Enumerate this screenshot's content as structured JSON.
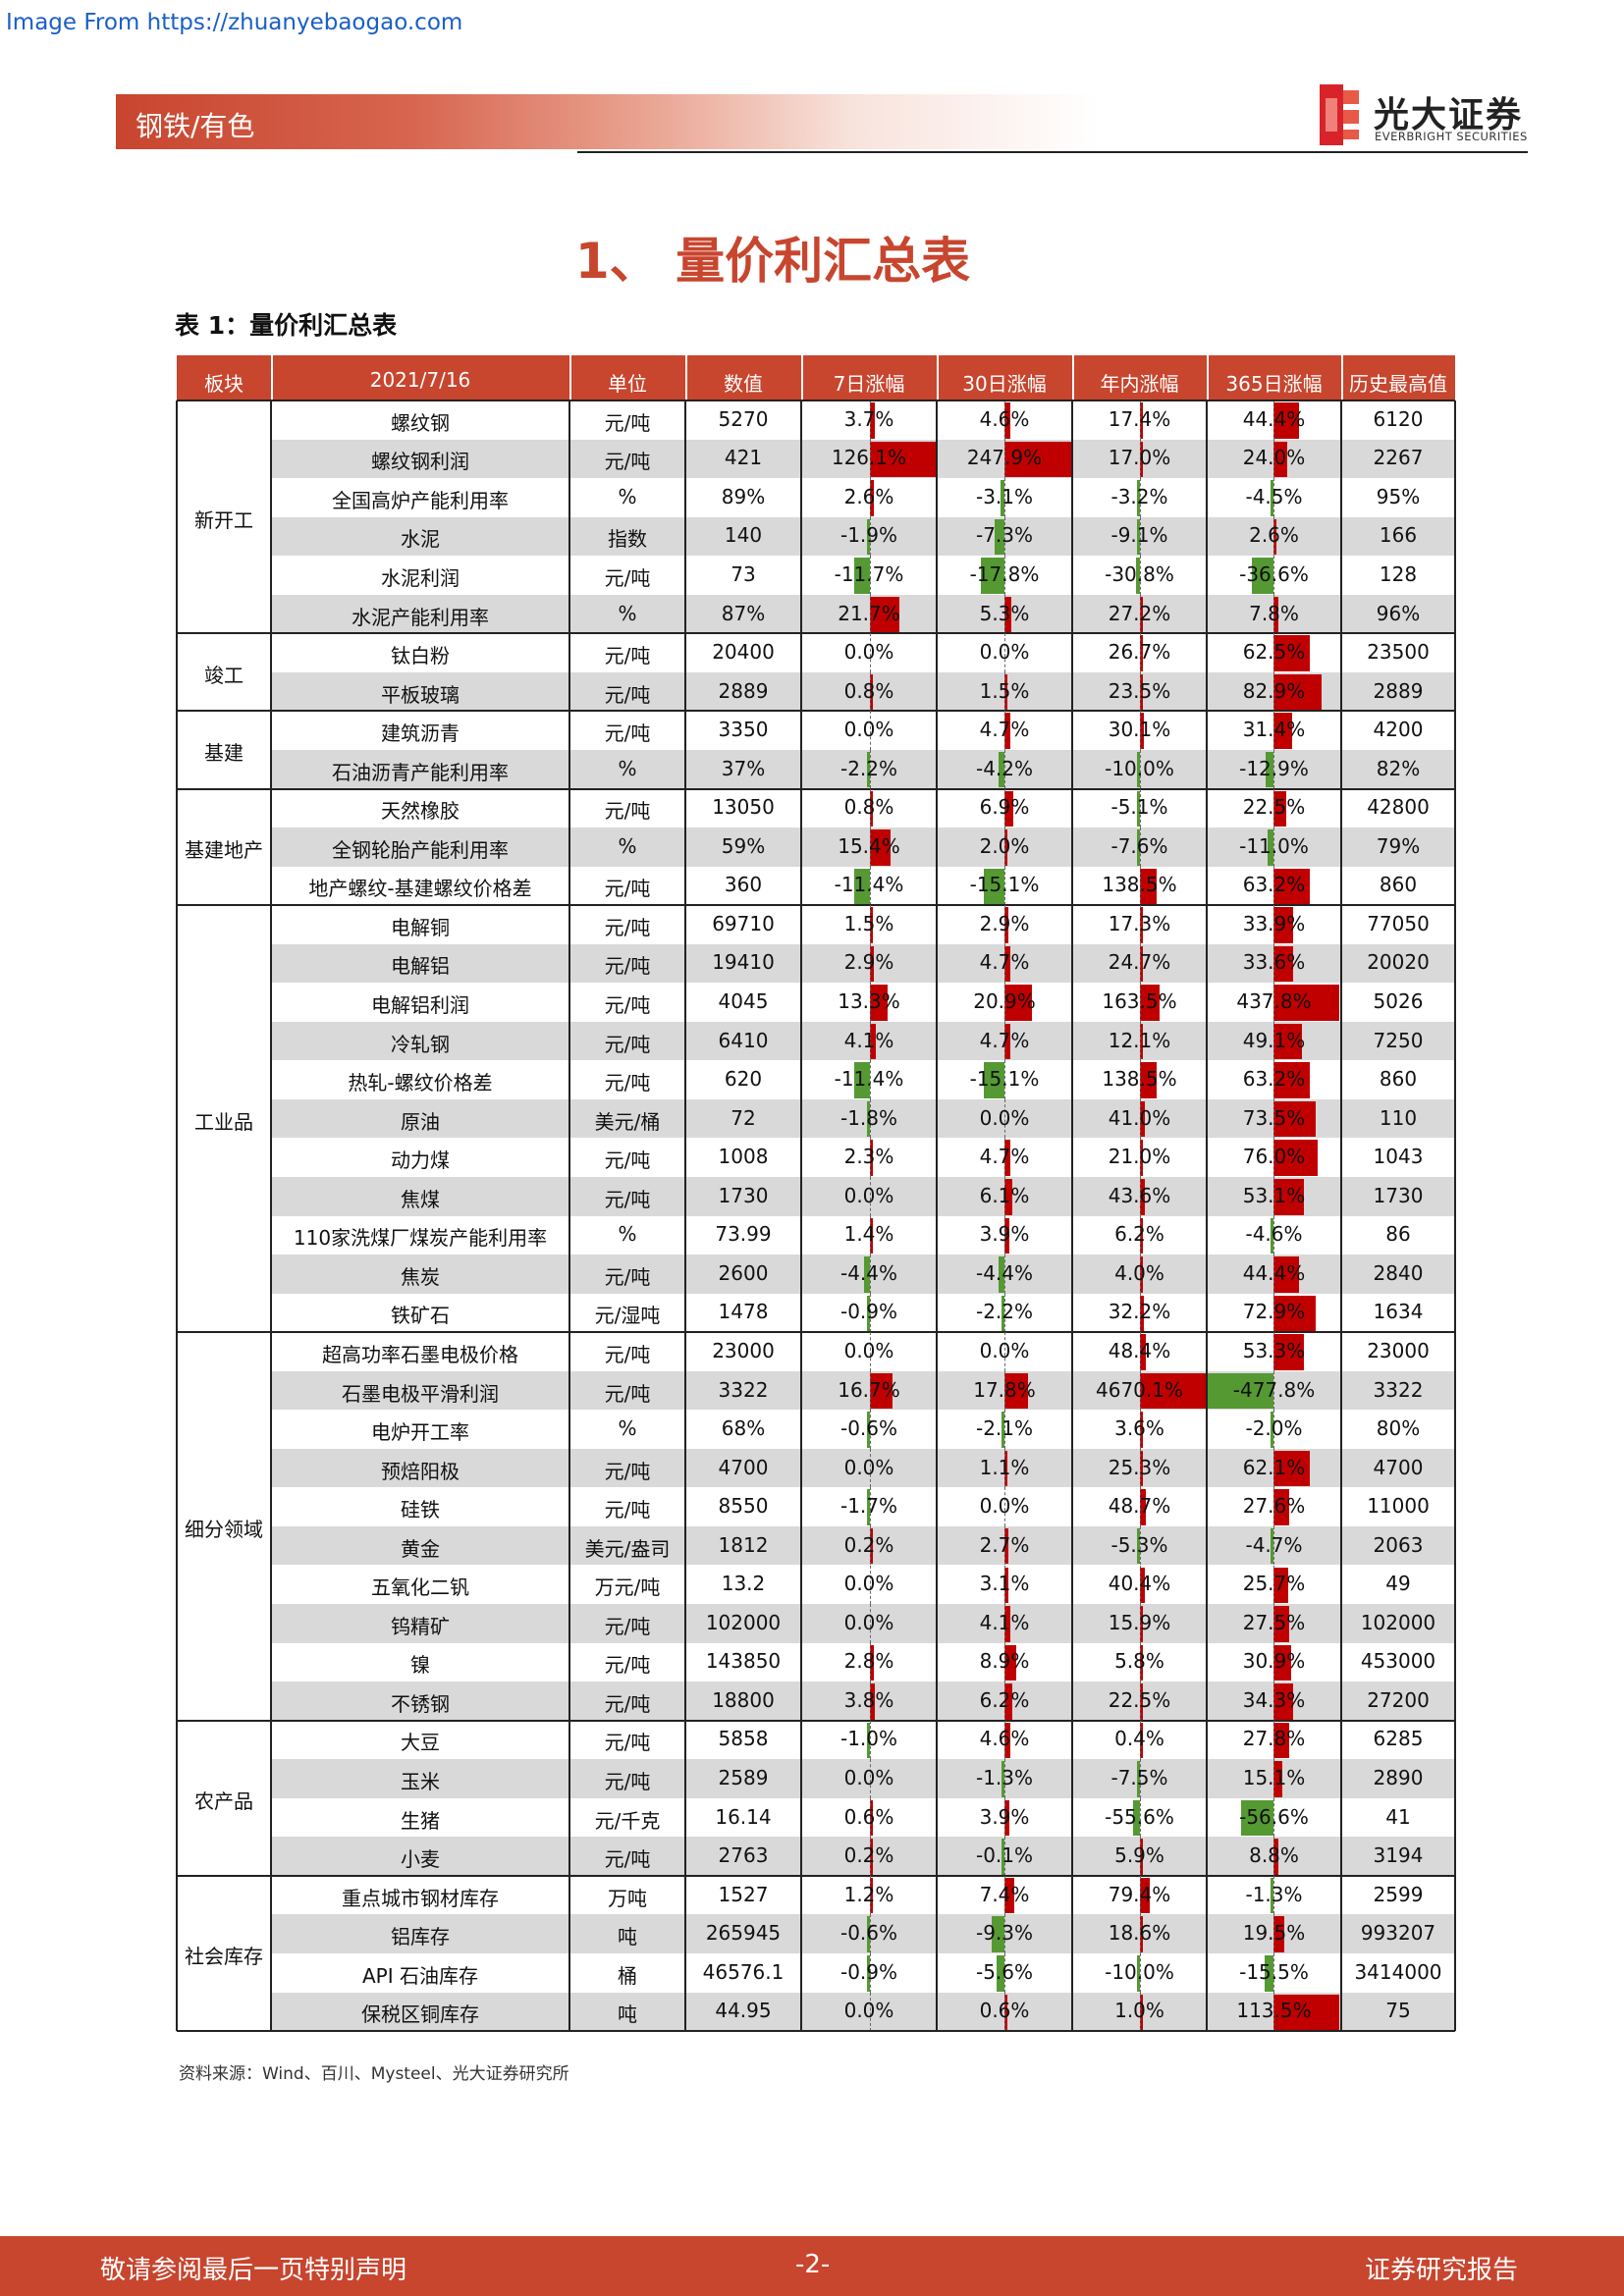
{
  "watermark": "Image From https://zhuanyebaogao.com",
  "header": {
    "section": "钢铁/有色",
    "logo_cn": "光大证券",
    "logo_en": "EVERBRIGHT SECURITIES"
  },
  "title": "1、 量价利汇总表",
  "caption": "表 1：量价利汇总表",
  "colors": {
    "accent": "#c8452e",
    "bar_up": "#c00000",
    "bar_down": "#559933",
    "row_shade": "#d9d9d9"
  },
  "table": {
    "headers": [
      "板块",
      "2021/7/16",
      "单位",
      "数值",
      "7日涨幅",
      "30日涨幅",
      "年内涨幅",
      "365日涨幅",
      "历史最高值"
    ],
    "groups": [
      {
        "name": "新开工",
        "rows": [
          {
            "name": "螺纹钢",
            "unit": "元/吨",
            "value": "5270",
            "d7": "3.7%",
            "d30": "4.6%",
            "ytd": "17.4%",
            "d365": "44.4%",
            "max": "6120"
          },
          {
            "name": "螺纹钢利润",
            "unit": "元/吨",
            "value": "421",
            "d7": "126.1%",
            "d30": "247.9%",
            "ytd": "17.0%",
            "d365": "24.0%",
            "max": "2267"
          },
          {
            "name": "全国高炉产能利用率",
            "unit": "%",
            "value": "89%",
            "d7": "2.6%",
            "d30": "-3.1%",
            "ytd": "-3.2%",
            "d365": "-4.5%",
            "max": "95%"
          },
          {
            "name": "水泥",
            "unit": "指数",
            "value": "140",
            "d7": "-1.9%",
            "d30": "-7.3%",
            "ytd": "-9.1%",
            "d365": "2.6%",
            "max": "166"
          },
          {
            "name": "水泥利润",
            "unit": "元/吨",
            "value": "73",
            "d7": "-11.7%",
            "d30": "-17.8%",
            "ytd": "-30.8%",
            "d365": "-36.6%",
            "max": "128"
          },
          {
            "name": "水泥产能利用率",
            "unit": "%",
            "value": "87%",
            "d7": "21.7%",
            "d30": "5.3%",
            "ytd": "27.2%",
            "d365": "7.8%",
            "max": "96%"
          }
        ]
      },
      {
        "name": "竣工",
        "rows": [
          {
            "name": "钛白粉",
            "unit": "元/吨",
            "value": "20400",
            "d7": "0.0%",
            "d30": "0.0%",
            "ytd": "26.7%",
            "d365": "62.5%",
            "max": "23500"
          },
          {
            "name": "平板玻璃",
            "unit": "元/吨",
            "value": "2889",
            "d7": "0.8%",
            "d30": "1.5%",
            "ytd": "23.5%",
            "d365": "82.9%",
            "max": "2889"
          }
        ]
      },
      {
        "name": "基建",
        "rows": [
          {
            "name": "建筑沥青",
            "unit": "元/吨",
            "value": "3350",
            "d7": "0.0%",
            "d30": "4.7%",
            "ytd": "30.1%",
            "d365": "31.4%",
            "max": "4200"
          },
          {
            "name": "石油沥青产能利用率",
            "unit": "%",
            "value": "37%",
            "d7": "-2.2%",
            "d30": "-4.2%",
            "ytd": "-10.0%",
            "d365": "-12.9%",
            "max": "82%"
          }
        ]
      },
      {
        "name": "基建地产",
        "rows": [
          {
            "name": "天然橡胶",
            "unit": "元/吨",
            "value": "13050",
            "d7": "0.8%",
            "d30": "6.9%",
            "ytd": "-5.1%",
            "d365": "22.5%",
            "max": "42800"
          },
          {
            "name": "全钢轮胎产能利用率",
            "unit": "%",
            "value": "59%",
            "d7": "15.4%",
            "d30": "2.0%",
            "ytd": "-7.6%",
            "d365": "-11.0%",
            "max": "79%"
          },
          {
            "name": "地产螺纹-基建螺纹价格差",
            "unit": "元/吨",
            "value": "360",
            "d7": "-11.4%",
            "d30": "-15.1%",
            "ytd": "138.5%",
            "d365": "63.2%",
            "max": "860"
          }
        ]
      },
      {
        "name": "工业品",
        "rows": [
          {
            "name": "电解铜",
            "unit": "元/吨",
            "value": "69710",
            "d7": "1.5%",
            "d30": "2.9%",
            "ytd": "17.3%",
            "d365": "33.9%",
            "max": "77050"
          },
          {
            "name": "电解铝",
            "unit": "元/吨",
            "value": "19410",
            "d7": "2.9%",
            "d30": "4.7%",
            "ytd": "24.7%",
            "d365": "33.6%",
            "max": "20020"
          },
          {
            "name": "电解铝利润",
            "unit": "元/吨",
            "value": "4045",
            "d7": "13.3%",
            "d30": "20.9%",
            "ytd": "163.5%",
            "d365": "437.8%",
            "max": "5026"
          },
          {
            "name": "冷轧钢",
            "unit": "元/吨",
            "value": "6410",
            "d7": "4.1%",
            "d30": "4.7%",
            "ytd": "12.1%",
            "d365": "49.1%",
            "max": "7250"
          },
          {
            "name": "热轧-螺纹价格差",
            "unit": "元/吨",
            "value": "620",
            "d7": "-11.4%",
            "d30": "-15.1%",
            "ytd": "138.5%",
            "d365": "63.2%",
            "max": "860"
          },
          {
            "name": "原油",
            "unit": "美元/桶",
            "value": "72",
            "d7": "-1.8%",
            "d30": "0.0%",
            "ytd": "41.0%",
            "d365": "73.5%",
            "max": "110"
          },
          {
            "name": "动力煤",
            "unit": "元/吨",
            "value": "1008",
            "d7": "2.3%",
            "d30": "4.7%",
            "ytd": "21.0%",
            "d365": "76.0%",
            "max": "1043"
          },
          {
            "name": "焦煤",
            "unit": "元/吨",
            "value": "1730",
            "d7": "0.0%",
            "d30": "6.1%",
            "ytd": "43.6%",
            "d365": "53.1%",
            "max": "1730"
          },
          {
            "name": "110家洗煤厂煤炭产能利用率",
            "unit": "%",
            "value": "73.99",
            "d7": "1.4%",
            "d30": "3.9%",
            "ytd": "6.2%",
            "d365": "-4.6%",
            "max": "86"
          },
          {
            "name": "焦炭",
            "unit": "元/吨",
            "value": "2600",
            "d7": "-4.4%",
            "d30": "-4.4%",
            "ytd": "4.0%",
            "d365": "44.4%",
            "max": "2840"
          },
          {
            "name": "铁矿石",
            "unit": "元/湿吨",
            "value": "1478",
            "d7": "-0.9%",
            "d30": "-2.2%",
            "ytd": "32.2%",
            "d365": "72.9%",
            "max": "1634"
          }
        ]
      },
      {
        "name": "细分领域",
        "rows": [
          {
            "name": "超高功率石墨电极价格",
            "unit": "元/吨",
            "value": "23000",
            "d7": "0.0%",
            "d30": "0.0%",
            "ytd": "48.4%",
            "d365": "53.3%",
            "max": "23000"
          },
          {
            "name": "石墨电极平滑利润",
            "unit": "元/吨",
            "value": "3322",
            "d7": "16.7%",
            "d30": "17.8%",
            "ytd": "4670.1%",
            "d365": "-477.8%",
            "max": "3322"
          },
          {
            "name": "电炉开工率",
            "unit": "%",
            "value": "68%",
            "d7": "-0.6%",
            "d30": "-2.1%",
            "ytd": "3.6%",
            "d365": "-2.0%",
            "max": "80%"
          },
          {
            "name": "预焙阳极",
            "unit": "元/吨",
            "value": "4700",
            "d7": "0.0%",
            "d30": "1.1%",
            "ytd": "25.3%",
            "d365": "62.1%",
            "max": "4700"
          },
          {
            "name": "硅铁",
            "unit": "元/吨",
            "value": "8550",
            "d7": "-1.7%",
            "d30": "0.0%",
            "ytd": "48.7%",
            "d365": "27.6%",
            "max": "11000"
          },
          {
            "name": "黄金",
            "unit": "美元/盎司",
            "value": "1812",
            "d7": "0.2%",
            "d30": "2.7%",
            "ytd": "-5.3%",
            "d365": "-4.7%",
            "max": "2063"
          },
          {
            "name": "五氧化二钒",
            "unit": "万元/吨",
            "value": "13.2",
            "d7": "0.0%",
            "d30": "3.1%",
            "ytd": "40.4%",
            "d365": "25.7%",
            "max": "49"
          },
          {
            "name": "钨精矿",
            "unit": "元/吨",
            "value": "102000",
            "d7": "0.0%",
            "d30": "4.1%",
            "ytd": "15.9%",
            "d365": "27.5%",
            "max": "102000"
          },
          {
            "name": "镍",
            "unit": "元/吨",
            "value": "143850",
            "d7": "2.8%",
            "d30": "8.9%",
            "ytd": "5.8%",
            "d365": "30.9%",
            "max": "453000"
          },
          {
            "name": "不锈钢",
            "unit": "元/吨",
            "value": "18800",
            "d7": "3.8%",
            "d30": "6.2%",
            "ytd": "22.5%",
            "d365": "34.3%",
            "max": "27200"
          }
        ]
      },
      {
        "name": "农产品",
        "rows": [
          {
            "name": "大豆",
            "unit": "元/吨",
            "value": "5858",
            "d7": "-1.0%",
            "d30": "4.6%",
            "ytd": "0.4%",
            "d365": "27.8%",
            "max": "6285"
          },
          {
            "name": "玉米",
            "unit": "元/吨",
            "value": "2589",
            "d7": "0.0%",
            "d30": "-1.3%",
            "ytd": "-7.5%",
            "d365": "15.1%",
            "max": "2890"
          },
          {
            "name": "生猪",
            "unit": "元/千克",
            "value": "16.14",
            "d7": "0.6%",
            "d30": "3.9%",
            "ytd": "-55.6%",
            "d365": "-56.6%",
            "max": "41"
          },
          {
            "name": "小麦",
            "unit": "元/吨",
            "value": "2763",
            "d7": "0.2%",
            "d30": "-0.1%",
            "ytd": "5.9%",
            "d365": "8.8%",
            "max": "3194"
          }
        ]
      },
      {
        "name": "社会库存",
        "rows": [
          {
            "name": "重点城市钢材库存",
            "unit": "万吨",
            "value": "1527",
            "d7": "1.2%",
            "d30": "7.4%",
            "ytd": "79.4%",
            "d365": "-1.3%",
            "max": "2599"
          },
          {
            "name": "铝库存",
            "unit": "吨",
            "value": "265945",
            "d7": "-0.6%",
            "d30": "-9.3%",
            "ytd": "18.6%",
            "d365": "19.5%",
            "max": "993207"
          },
          {
            "name": "API 石油库存",
            "unit": "桶",
            "value": "46576.1",
            "d7": "-0.9%",
            "d30": "-5.6%",
            "ytd": "-10.0%",
            "d365": "-15.5%",
            "max": "3414000"
          },
          {
            "name": "保税区铜库存",
            "unit": "吨",
            "value": "44.95",
            "d7": "0.0%",
            "d30": "0.6%",
            "ytd": "1.0%",
            "d365": "113.5%",
            "max": "75"
          }
        ]
      }
    ]
  },
  "source": "资料来源：Wind、百川、Mysteel、光大证券研究所",
  "footer": {
    "left": "敬请参阅最后一页特别声明",
    "center": "-2-",
    "right": "证券研究报告"
  }
}
